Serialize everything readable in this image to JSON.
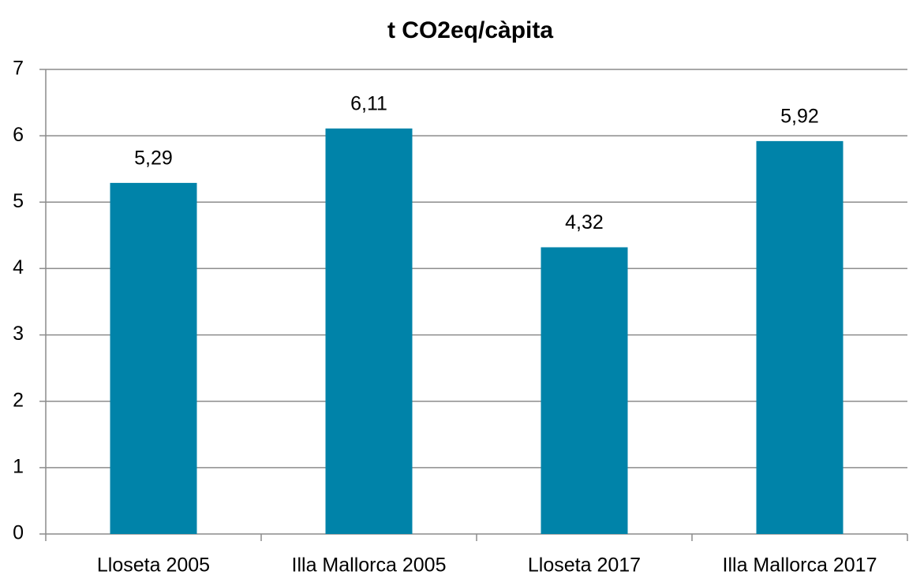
{
  "chart_data": {
    "type": "bar",
    "title": "t CO2eq/càpita",
    "categories": [
      "Lloseta 2005",
      "Illa Mallorca 2005",
      "Lloseta 2017",
      "Illa Mallorca 2017"
    ],
    "values": [
      5.29,
      6.11,
      4.32,
      5.92
    ],
    "value_labels": [
      "5,29",
      "6,11",
      "4,32",
      "5,92"
    ],
    "color": "#0083a9",
    "ylim": [
      0,
      7
    ],
    "yticks": [
      0,
      1,
      2,
      3,
      4,
      5,
      6,
      7
    ],
    "grid": true
  }
}
